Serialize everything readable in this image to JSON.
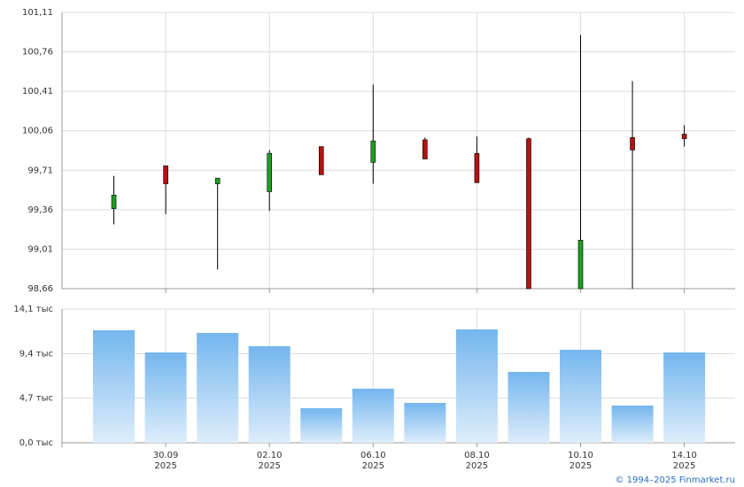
{
  "chart_data": [
    {
      "type": "candlestick",
      "open": [
        99.37,
        99.75,
        99.59,
        99.52,
        99.92,
        99.78,
        99.98,
        99.86,
        99.99,
        98.66,
        100.0,
        100.03
      ],
      "high": [
        99.66,
        99.75,
        99.64,
        99.89,
        99.92,
        100.47,
        100.0,
        100.01,
        100.0,
        100.91,
        100.5,
        100.11
      ],
      "low": [
        99.23,
        99.32,
        98.83,
        99.35,
        99.67,
        99.59,
        99.81,
        99.6,
        98.66,
        98.66,
        98.66,
        99.92
      ],
      "close": [
        99.49,
        99.59,
        99.64,
        99.86,
        99.67,
        99.97,
        99.81,
        99.6,
        98.66,
        99.09,
        99.89,
        99.99
      ],
      "up_color": "#1f9e24",
      "down_color": "#b3120f",
      "ylim": [
        98.66,
        101.11
      ],
      "yticks": [
        {
          "value": 98.66,
          "label": "98,66"
        },
        {
          "value": 99.01,
          "label": "99,01"
        },
        {
          "value": 99.36,
          "label": "99,36"
        },
        {
          "value": 99.71,
          "label": "99,71"
        },
        {
          "value": 100.06,
          "label": "100,06"
        },
        {
          "value": 100.41,
          "label": "100,41"
        },
        {
          "value": 100.76,
          "label": "100,76"
        },
        {
          "value": 101.11,
          "label": "101,11"
        }
      ],
      "grid": true
    },
    {
      "type": "bar",
      "categories": [
        null,
        "30.09",
        null,
        "02.10",
        null,
        "06.10",
        null,
        "08.10",
        null,
        "10.10",
        null,
        "14.10"
      ],
      "years": [
        null,
        "2025",
        null,
        "2025",
        null,
        "2025",
        null,
        "2025",
        null,
        "2025",
        null,
        "2025"
      ],
      "values": [
        11.86,
        9.52,
        11.58,
        10.18,
        3.64,
        5.7,
        4.2,
        11.95,
        7.47,
        9.8,
        3.92,
        9.52
      ],
      "color": "#74b6ee",
      "ylim": [
        0,
        14.1
      ],
      "yticks": [
        {
          "value": 0,
          "label": "0,0 тыс"
        },
        {
          "value": 4.7,
          "label": "4,7 тыс"
        },
        {
          "value": 9.4,
          "label": "9,4 тыс"
        },
        {
          "value": 14.1,
          "label": "14,1 тыс"
        }
      ],
      "grid": true
    }
  ],
  "footer": "© 1994–2025 Finmarket.ru"
}
